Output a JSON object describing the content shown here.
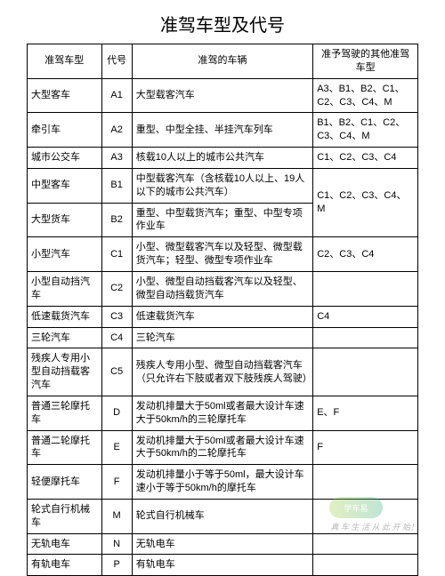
{
  "title": "准驾车型及代号",
  "headers": [
    "准驾车型",
    "代号",
    "准驾的车辆",
    "准予驾驶的其他准驾车型"
  ],
  "rows": [
    {
      "type": "大型客车",
      "code": "A1",
      "vehicle": "大型载客汽车",
      "other": "A3、B1、B2、C1、C2、C3、C4、M",
      "span": 1
    },
    {
      "type": "牵引车",
      "code": "A2",
      "vehicle": "重型、中型全挂、半挂汽车列车",
      "other": "B1、B2、C1、C2、C3、C4、M",
      "span": 1
    },
    {
      "type": "城市公交车",
      "code": "A3",
      "vehicle": "核载10人以上的城市公共汽车",
      "other": "C1、C2、C3、C4",
      "span": 1
    },
    {
      "type": "中型客车",
      "code": "B1",
      "vehicle": "中型载客汽车（含核载10人以上、19人以下的城市公共汽车）",
      "other": "C1、C2、C3、C4、M",
      "span": 2
    },
    {
      "type": "大型货车",
      "code": "B2",
      "vehicle": "重型、中型载货汽车；重型、中型专项作业车"
    },
    {
      "type": "小型汽车",
      "code": "C1",
      "vehicle": "小型、微型载客汽车以及轻型、微型载货汽车；轻型、微型专项作业车",
      "other": "C2、C3、C4",
      "span": 1
    },
    {
      "type": "小型自动挡汽车",
      "code": "C2",
      "vehicle": "小型、微型自动挡载客汽车以及轻型、微型自动挡载货汽车",
      "other": "",
      "span": 1
    },
    {
      "type": "低速载货汽车",
      "code": "C3",
      "vehicle": "低速载货汽车",
      "other": "C4",
      "span": 1
    },
    {
      "type": "三轮汽车",
      "code": "C4",
      "vehicle": "三轮汽车",
      "other": "",
      "span": 1
    },
    {
      "type": "残疾人专用小型自动挡载客汽车",
      "code": "C5",
      "vehicle": "残疾人专用小型、微型自动挡载客汽车（只允许右下肢或者双下肢残疾人驾驶）",
      "other": "",
      "span": 1
    },
    {
      "type": "普通三轮摩托车",
      "code": "D",
      "vehicle": "发动机排量大于50ml或者最大设计车速大于50km/h的三轮摩托车",
      "other": "E、F",
      "span": 1
    },
    {
      "type": "普通二轮摩托车",
      "code": "E",
      "vehicle": "发动机排量大于50ml或者最大设计车速大于50km/h的二轮摩托车",
      "other": "F",
      "span": 1
    },
    {
      "type": "轻便摩托车",
      "code": "F",
      "vehicle": "发动机排量小于等于50ml，最大设计车速小于等于50km/h的摩托车",
      "other": "",
      "span": 1
    },
    {
      "type": "轮式自行机械车",
      "code": "M",
      "vehicle": "轮式自行机械车",
      "other": "",
      "span": 1
    },
    {
      "type": "无轨电车",
      "code": "N",
      "vehicle": "无轨电车",
      "other": "",
      "span": 1
    },
    {
      "type": "有轨电车",
      "code": "P",
      "vehicle": "有轨电车",
      "other": "",
      "span": 1
    }
  ],
  "watermark": {
    "logo": "学车易",
    "tagline": "真 车 生 活 从 此 开 始！"
  }
}
